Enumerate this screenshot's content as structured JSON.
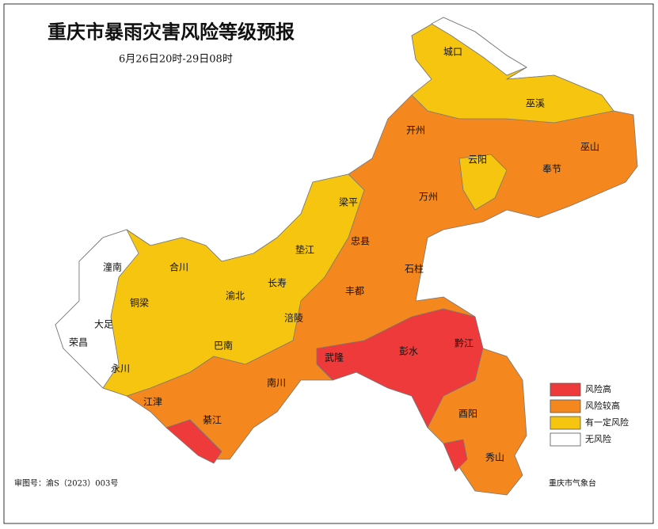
{
  "header": {
    "title": "重庆市暴雨灾害风险等级预报",
    "subtitle": "6月26日20时-29日08时"
  },
  "legend": [
    {
      "label": "风险高",
      "color": "#ee3a3a"
    },
    {
      "label": "风险较高",
      "color": "#f5871f"
    },
    {
      "label": "有一定风险",
      "color": "#f5c50f"
    },
    {
      "label": "无风险",
      "color": "#ffffff"
    }
  ],
  "districts": [
    "城口",
    "巫溪",
    "开州",
    "云阳",
    "巫山",
    "奉节",
    "梁平",
    "万州",
    "忠县",
    "垫江",
    "石柱",
    "长寿",
    "丰都",
    "涪陵",
    "武隆",
    "彭水",
    "黔江",
    "酉阳",
    "秀山",
    "南川",
    "綦江",
    "江津",
    "巴南",
    "渝北",
    "合川",
    "潼南",
    "铜梁",
    "大足",
    "荣昌",
    "永川"
  ],
  "footer": {
    "map_number": "审图号：渝S（2023）003号",
    "source": "重庆市气象台"
  }
}
